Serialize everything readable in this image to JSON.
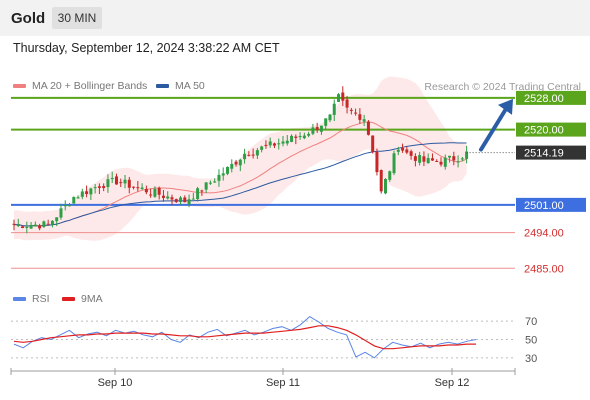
{
  "header": {
    "asset": "Gold",
    "timeframe": "30 MIN",
    "datetime": "Thursday, September 12, 2024 3:38:22 AM CET"
  },
  "legend": {
    "ma20_label": "MA 20 + Bollinger Bands",
    "ma50_label": "MA 50",
    "rsi_label": "RSI",
    "ma9_label": "9MA"
  },
  "credit": "Research © 2024 Trading Central",
  "colors": {
    "green_level": "#5aa51c",
    "blue_level": "#3d6fe0",
    "red_level": "#f08f8f",
    "current_price": "#333333",
    "ma20": "#f08080",
    "ma50": "#2c5aa0",
    "bollinger_fill": "#fde3e3",
    "candle_up": "#2e9e47",
    "candle_down": "#c62828",
    "arrow": "#2c5ea8",
    "rsi_line": "#5b86e5",
    "rsi_ma": "#e02020"
  },
  "chart_data": [
    {
      "type": "candlestick",
      "title": "Gold",
      "timeframe": "30 MIN",
      "x_ticks": [
        "Sep 10",
        "Sep 11",
        "Sep 12"
      ],
      "ylim": [
        2478,
        2531
      ],
      "current_price": "2514.19",
      "levels": [
        {
          "value": 2528.0,
          "label": "2528.00",
          "color": "green"
        },
        {
          "value": 2520.0,
          "label": "2520.00",
          "color": "green"
        },
        {
          "value": 2501.0,
          "label": "2501.00",
          "color": "blue"
        },
        {
          "value": 2494.0,
          "label": "2494.00",
          "color": "red"
        },
        {
          "value": 2485.0,
          "label": "2485.00",
          "color": "red"
        }
      ],
      "forecast_arrow": {
        "from": 2514.2,
        "to": 2528.0,
        "direction": "up"
      },
      "key_prices": [
        {
          "x": "Sep 9 late",
          "price": 2496
        },
        {
          "x": "Sep 10",
          "price": 2503
        },
        {
          "x": "Sep 10 mid",
          "price": 2507
        },
        {
          "x": "Sep 10 late",
          "price": 2503
        },
        {
          "x": "Sep 11 early",
          "price": 2512
        },
        {
          "x": "Sep 11",
          "price": 2517
        },
        {
          "x": "Sep 11 mid",
          "price": 2520
        },
        {
          "x": "Sep 11 high",
          "price": 2529
        },
        {
          "x": "Sep 11 late",
          "price": 2523
        },
        {
          "x": "Sep 11 low",
          "price": 2501
        },
        {
          "x": "Sep 12 early",
          "price": 2517
        },
        {
          "x": "Sep 12",
          "price": 2512
        },
        {
          "x": "Sep 12 last",
          "price": 2514
        }
      ],
      "series": [
        {
          "name": "MA 20 + Bollinger Bands"
        },
        {
          "name": "MA 50"
        }
      ]
    },
    {
      "type": "line",
      "title": "RSI",
      "y_ticks": [
        30,
        50,
        70
      ],
      "ylim": [
        20,
        80
      ],
      "series": [
        {
          "name": "RSI",
          "values": [
            45,
            41,
            48,
            52,
            50,
            55,
            60,
            52,
            56,
            58,
            54,
            60,
            57,
            59,
            55,
            53,
            58,
            50,
            47,
            55,
            52,
            58,
            61,
            54,
            57,
            60,
            55,
            58,
            62,
            64,
            60,
            66,
            75,
            69,
            62,
            58,
            55,
            31,
            36,
            30,
            40,
            47,
            44,
            42,
            46,
            41,
            45,
            47,
            45,
            48,
            50
          ]
        },
        {
          "name": "9MA",
          "values": [
            48,
            47,
            48,
            50,
            52,
            53,
            54,
            55,
            55,
            56,
            56,
            57,
            57,
            57,
            57,
            56,
            56,
            55,
            54,
            54,
            53,
            53,
            54,
            55,
            56,
            57,
            57,
            57,
            58,
            59,
            60,
            61,
            63,
            65,
            65,
            63,
            60,
            55,
            49,
            43,
            40,
            40,
            41,
            42,
            43,
            43,
            43,
            44,
            44,
            45,
            45
          ]
        }
      ]
    }
  ]
}
